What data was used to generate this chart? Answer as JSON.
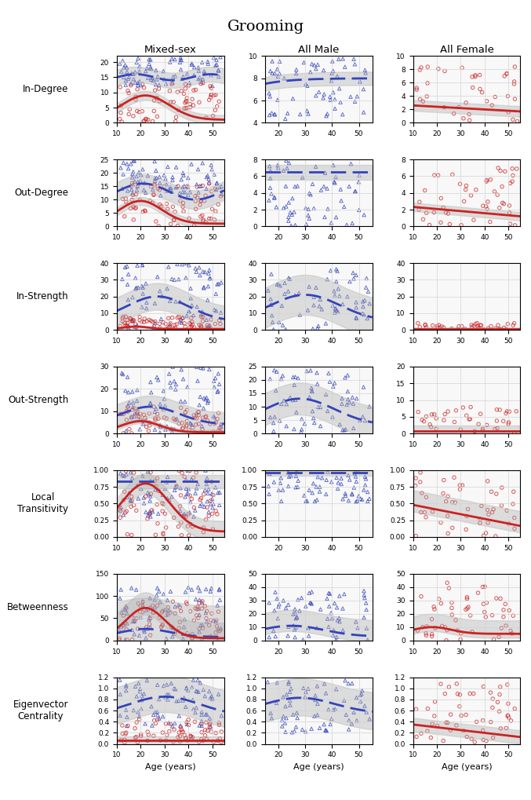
{
  "title": "Grooming",
  "col_labels": [
    "Mixed-sex",
    "All Male",
    "All Female"
  ],
  "row_labels": [
    "In-Degree",
    "Out-Degree",
    "In-Strength",
    "Out-Strength",
    "Local\nTransitivity",
    "Betweenness",
    "Eigenvector\nCentrality"
  ],
  "xlabel": "Age (years)",
  "blue_color": "#3344bb",
  "red_color": "#cc2222",
  "shade_color": "#aaaaaa",
  "rows": 7,
  "cols": 3,
  "ylims": [
    [
      [
        0,
        22
      ],
      [
        4,
        10
      ],
      [
        0,
        10
      ]
    ],
    [
      [
        0,
        25
      ],
      [
        0,
        8
      ],
      [
        0,
        8
      ]
    ],
    [
      [
        0,
        40
      ],
      [
        0,
        40
      ],
      [
        0,
        40
      ]
    ],
    [
      [
        0,
        30
      ],
      [
        0,
        25
      ],
      [
        0,
        20
      ]
    ],
    [
      [
        0.0,
        1.0
      ],
      [
        0.0,
        1.0
      ],
      [
        0.0,
        1.0
      ]
    ],
    [
      [
        0,
        150
      ],
      [
        0,
        50
      ],
      [
        0,
        50
      ]
    ],
    [
      [
        0.0,
        1.2
      ],
      [
        0.0,
        1.2
      ],
      [
        0.0,
        1.2
      ]
    ]
  ],
  "xlims": [
    [
      [
        10,
        55
      ],
      [
        15,
        55
      ],
      [
        10,
        55
      ]
    ],
    [
      [
        10,
        55
      ],
      [
        15,
        55
      ],
      [
        10,
        55
      ]
    ],
    [
      [
        10,
        55
      ],
      [
        15,
        55
      ],
      [
        10,
        55
      ]
    ],
    [
      [
        10,
        55
      ],
      [
        15,
        55
      ],
      [
        10,
        55
      ]
    ],
    [
      [
        10,
        55
      ],
      [
        15,
        55
      ],
      [
        10,
        55
      ]
    ],
    [
      [
        10,
        55
      ],
      [
        15,
        55
      ],
      [
        10,
        55
      ]
    ],
    [
      [
        10,
        55
      ],
      [
        15,
        55
      ],
      [
        10,
        55
      ]
    ]
  ],
  "yticks": [
    [
      [
        0,
        5,
        10,
        15,
        20
      ],
      [
        4,
        6,
        8,
        10
      ],
      [
        0,
        2,
        4,
        6,
        8,
        10
      ]
    ],
    [
      [
        0,
        5,
        10,
        15,
        20,
        25
      ],
      [
        0,
        2,
        4,
        6,
        8
      ],
      [
        0,
        2,
        4,
        6,
        8
      ]
    ],
    [
      [
        0,
        10,
        20,
        30,
        40
      ],
      [
        0,
        10,
        20,
        30,
        40
      ],
      [
        0,
        10,
        20,
        30,
        40
      ]
    ],
    [
      [
        0,
        10,
        20,
        30
      ],
      [
        0,
        5,
        10,
        15,
        20,
        25
      ],
      [
        0,
        5,
        10,
        15,
        20
      ]
    ],
    [
      [
        0.0,
        0.25,
        0.5,
        0.75,
        1.0
      ],
      [
        0.0,
        0.25,
        0.5,
        0.75,
        1.0
      ],
      [
        0.0,
        0.25,
        0.5,
        0.75,
        1.0
      ]
    ],
    [
      [
        0,
        50,
        100,
        150
      ],
      [
        0,
        10,
        20,
        30,
        40,
        50
      ],
      [
        0,
        10,
        20,
        30,
        40,
        50
      ]
    ],
    [
      [
        0.0,
        0.2,
        0.4,
        0.6,
        0.8,
        1.0,
        1.2
      ],
      [
        0.0,
        0.2,
        0.4,
        0.6,
        0.8,
        1.0,
        1.2
      ],
      [
        0.0,
        0.2,
        0.4,
        0.6,
        0.8,
        1.0,
        1.2
      ]
    ]
  ],
  "xticks_col0": [
    10,
    20,
    30,
    40,
    50
  ],
  "xticks_col1": [
    20,
    30,
    40,
    50
  ],
  "xticks_col2": [
    10,
    20,
    30,
    40,
    50
  ]
}
